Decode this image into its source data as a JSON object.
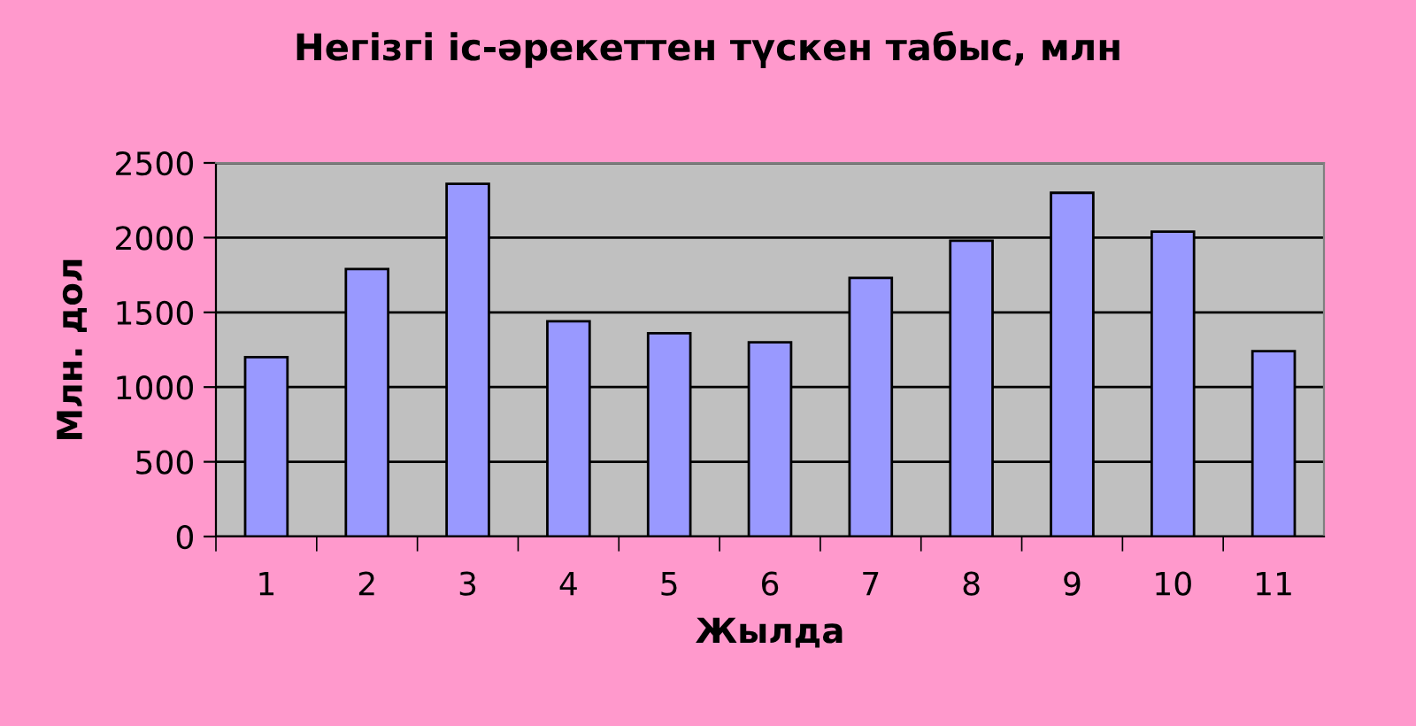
{
  "chart_data": {
    "type": "bar",
    "title": "Негізгі іс-әрекеттен түскен табыс, млн",
    "xlabel": "Жылда",
    "ylabel": "Млн. дол",
    "categories": [
      "1",
      "2",
      "3",
      "4",
      "5",
      "6",
      "7",
      "8",
      "9",
      "10",
      "11"
    ],
    "values": [
      1200,
      1790,
      2360,
      1440,
      1360,
      1300,
      1730,
      1980,
      2300,
      2040,
      1240
    ],
    "color": "#9999ff",
    "ylim": [
      0,
      2500
    ],
    "yticks": [
      0,
      500,
      1000,
      1500,
      2000,
      2500
    ],
    "grid": "y",
    "legend": false
  }
}
